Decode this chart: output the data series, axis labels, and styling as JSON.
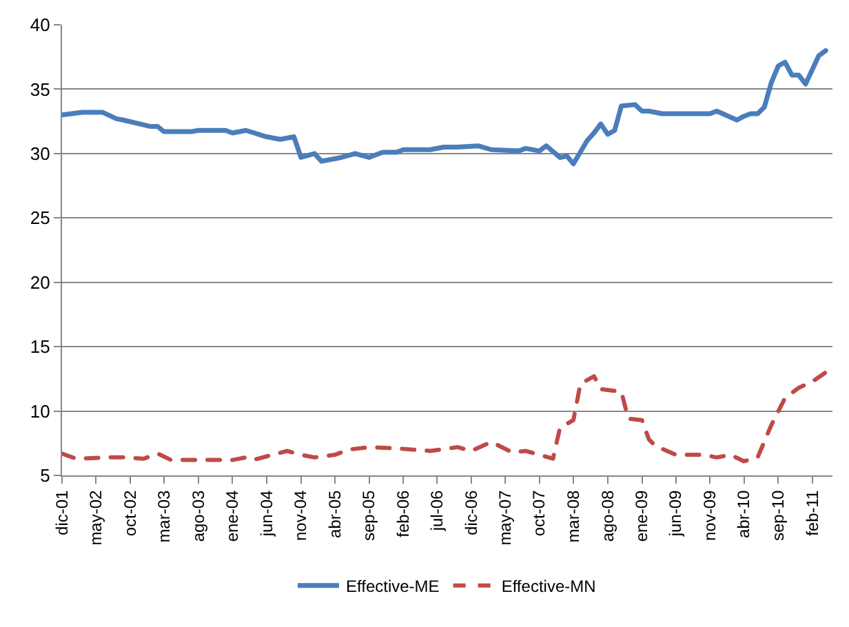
{
  "chart_data": {
    "type": "line",
    "xlim": [
      "2001-12",
      "2011-05"
    ],
    "ylim": [
      5,
      40
    ],
    "yticks": [
      5,
      10,
      15,
      20,
      25,
      30,
      35,
      40
    ],
    "xticks": [
      {
        "value": "2001-12",
        "label": "dic-01"
      },
      {
        "value": "2002-05",
        "label": "may-02"
      },
      {
        "value": "2002-10",
        "label": "oct-02"
      },
      {
        "value": "2003-03",
        "label": "mar-03"
      },
      {
        "value": "2003-08",
        "label": "ago-03"
      },
      {
        "value": "2004-01",
        "label": "ene-04"
      },
      {
        "value": "2004-06",
        "label": "jun-04"
      },
      {
        "value": "2004-11",
        "label": "nov-04"
      },
      {
        "value": "2005-04",
        "label": "abr-05"
      },
      {
        "value": "2005-09",
        "label": "sep-05"
      },
      {
        "value": "2006-02",
        "label": "feb-06"
      },
      {
        "value": "2006-07",
        "label": "jul-06"
      },
      {
        "value": "2006-12",
        "label": "dic-06"
      },
      {
        "value": "2007-05",
        "label": "may-07"
      },
      {
        "value": "2007-10",
        "label": "oct-07"
      },
      {
        "value": "2008-03",
        "label": "mar-08"
      },
      {
        "value": "2008-08",
        "label": "ago-08"
      },
      {
        "value": "2009-01",
        "label": "ene-09"
      },
      {
        "value": "2009-06",
        "label": "jun-09"
      },
      {
        "value": "2009-11",
        "label": "nov-09"
      },
      {
        "value": "2010-04",
        "label": "abr-10"
      },
      {
        "value": "2010-09",
        "label": "sep-10"
      },
      {
        "value": "2011-02",
        "label": "feb-11"
      }
    ],
    "grid": "y",
    "legend": "bottom",
    "marker": "none",
    "series": [
      {
        "name": "Effective-ME",
        "color": "#4a7ebb",
        "line_style": "solid",
        "x": [
          "2001-12",
          "2002-03",
          "2002-06",
          "2002-08",
          "2002-09",
          "2003-01",
          "2003-02",
          "2003-03",
          "2003-07",
          "2003-08",
          "2003-12",
          "2004-01",
          "2004-03",
          "2004-06",
          "2004-08",
          "2004-10",
          "2004-11",
          "2005-01",
          "2005-02",
          "2005-05",
          "2005-07",
          "2005-09",
          "2005-11",
          "2006-01",
          "2006-02",
          "2006-06",
          "2006-08",
          "2006-10",
          "2007-01",
          "2007-03",
          "2007-07",
          "2007-08",
          "2007-10",
          "2007-11",
          "2008-01",
          "2008-02",
          "2008-03",
          "2008-05",
          "2008-06",
          "2008-07",
          "2008-08",
          "2008-09",
          "2008-10",
          "2008-12",
          "2009-01",
          "2009-02",
          "2009-04",
          "2009-11",
          "2009-12",
          "2010-03",
          "2010-04",
          "2010-05",
          "2010-06",
          "2010-07",
          "2010-08",
          "2010-09",
          "2010-10",
          "2010-11",
          "2010-12",
          "2011-01",
          "2011-03",
          "2011-04"
        ],
        "values": [
          33.0,
          33.2,
          33.2,
          32.7,
          32.6,
          32.1,
          32.1,
          31.7,
          31.7,
          31.8,
          31.8,
          31.6,
          31.8,
          31.3,
          31.1,
          31.3,
          29.7,
          30.0,
          29.4,
          29.7,
          30.0,
          29.7,
          30.1,
          30.1,
          30.3,
          30.3,
          30.5,
          30.5,
          30.6,
          30.3,
          30.2,
          30.4,
          30.2,
          30.6,
          29.7,
          29.8,
          29.2,
          31.0,
          31.6,
          32.3,
          31.5,
          31.8,
          33.7,
          33.8,
          33.3,
          33.3,
          33.1,
          33.1,
          33.3,
          32.6,
          32.9,
          33.1,
          33.1,
          33.6,
          35.5,
          36.8,
          37.1,
          36.1,
          36.1,
          35.4,
          37.6,
          38.0
        ]
      },
      {
        "name": "Effective-MN",
        "color": "#be4b48",
        "line_style": "dashed",
        "x": [
          "2001-12",
          "2002-02",
          "2002-07",
          "2002-09",
          "2002-12",
          "2003-02",
          "2003-04",
          "2003-08",
          "2003-10",
          "2004-01",
          "2004-03",
          "2004-04",
          "2004-09",
          "2004-11",
          "2005-01",
          "2005-04",
          "2005-06",
          "2005-09",
          "2006-01",
          "2006-06",
          "2006-10",
          "2006-12",
          "2007-03",
          "2007-06",
          "2007-08",
          "2007-12",
          "2008-01",
          "2008-03",
          "2008-04",
          "2008-06",
          "2008-07",
          "2008-10",
          "2008-11",
          "2009-01",
          "2009-02",
          "2009-03",
          "2009-06",
          "2009-10",
          "2009-12",
          "2010-02",
          "2010-04",
          "2010-06",
          "2010-08",
          "2010-10",
          "2010-12",
          "2011-02",
          "2011-04"
        ],
        "values": [
          6.7,
          6.3,
          6.4,
          6.4,
          6.3,
          6.7,
          6.2,
          6.2,
          6.2,
          6.2,
          6.4,
          6.2,
          6.9,
          6.6,
          6.4,
          6.6,
          7.0,
          7.2,
          7.1,
          6.9,
          7.2,
          6.9,
          7.6,
          6.8,
          6.9,
          6.3,
          8.7,
          9.3,
          12.1,
          12.7,
          11.7,
          11.5,
          9.4,
          9.3,
          7.8,
          7.3,
          6.6,
          6.6,
          6.4,
          6.6,
          6.1,
          6.4,
          8.9,
          11.0,
          11.8,
          12.3,
          13.0
        ]
      }
    ]
  }
}
